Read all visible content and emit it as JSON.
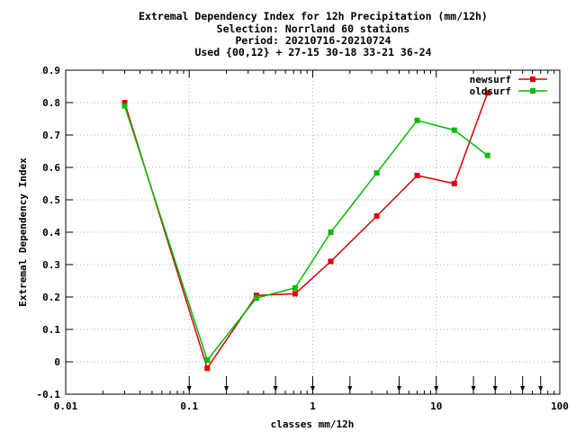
{
  "chart_data": {
    "type": "line",
    "title_lines": [
      "Extremal Dependency Index  for 12h Precipitation (mm/12h)",
      "Selection: Norrland     60 stations",
      "Period: 20210716-20210724",
      "Used {00,12} + 27-15 30-18 33-21 36-24"
    ],
    "xlabel": "classes mm/12h",
    "ylabel": "Extremal Dependency Index",
    "xscale": "log",
    "xlim": [
      0.01,
      100
    ],
    "ylim": [
      -0.1,
      0.9
    ],
    "x_ticks": [
      {
        "value": 0.01,
        "label": "0.01"
      },
      {
        "value": 0.1,
        "label": "0.1"
      },
      {
        "value": 1,
        "label": "1"
      },
      {
        "value": 10,
        "label": "10"
      },
      {
        "value": 100,
        "label": "100"
      }
    ],
    "y_ticks": [
      {
        "value": -0.1,
        "label": "-0.1"
      },
      {
        "value": 0,
        "label": "0"
      },
      {
        "value": 0.1,
        "label": "0.1"
      },
      {
        "value": 0.2,
        "label": "0.2"
      },
      {
        "value": 0.3,
        "label": "0.3"
      },
      {
        "value": 0.4,
        "label": "0.4"
      },
      {
        "value": 0.5,
        "label": "0.5"
      },
      {
        "value": 0.6,
        "label": "0.6"
      },
      {
        "value": 0.7,
        "label": "0.7"
      },
      {
        "value": 0.8,
        "label": "0.8"
      },
      {
        "value": 0.9,
        "label": "0.9"
      }
    ],
    "grid": true,
    "legend_position": "top-right",
    "class_markers": [
      0.1,
      0.2,
      0.5,
      1,
      2,
      5,
      10,
      20,
      30,
      50,
      70
    ],
    "series": [
      {
        "name": "newsurf",
        "color": "#dd0000",
        "x": [
          0.03,
          0.14,
          0.35,
          0.72,
          1.4,
          3.3,
          7,
          14,
          26
        ],
        "y": [
          0.8,
          -0.02,
          0.205,
          0.21,
          0.31,
          0.45,
          0.575,
          0.55,
          0.83
        ]
      },
      {
        "name": "oldsurf",
        "color": "#00bb00",
        "x": [
          0.03,
          0.14,
          0.35,
          0.72,
          1.4,
          3.3,
          7,
          14,
          26
        ],
        "y": [
          0.79,
          0.005,
          0.197,
          0.228,
          0.4,
          0.583,
          0.745,
          0.715,
          0.637
        ]
      }
    ]
  }
}
